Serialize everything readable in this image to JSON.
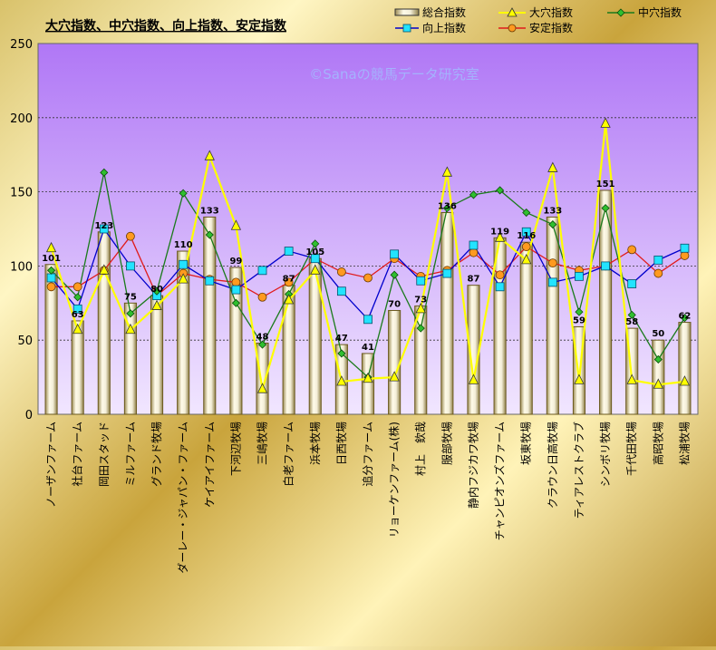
{
  "chart_data": {
    "type": "bar",
    "title": "大穴指数、中穴指数、向上指数、安定指数",
    "watermark": "©Sanaの競馬データ研究室",
    "ylim": [
      0,
      250
    ],
    "yticks": [
      0,
      50,
      100,
      150,
      200,
      250
    ],
    "grid": true,
    "legend_position": "top-right",
    "colors": {
      "plot_top": "#b077f6",
      "plot_bottom": "#f1e6ff",
      "bar_fill": "#f3eed8",
      "bar_edge": "#6b5a1f",
      "series_ooana": "#ffff00",
      "series_nakaana": "#1a7a1a",
      "series_koujou": "#0000cc",
      "series_antei": "#e01b1b"
    },
    "categories": [
      "ノーザンファーム",
      "社台ファーム",
      "岡田スタッド",
      "ミルファーム",
      "グランド牧場",
      "ダーレー・ジャパン・ファーム",
      "ケイアイファーム",
      "下河辺牧場",
      "三嶋牧場",
      "白老ファーム",
      "浜本牧場",
      "日西牧場",
      "追分ファーム",
      "リョーケンファーム(株)",
      "村上　欽哉",
      "服部牧場",
      "静内フジカワ牧場",
      "チャンピオンズファーム",
      "坂東牧場",
      "クラウン日高牧場",
      "ティアレストクラブ",
      "シンボリ牧場",
      "千代田牧場",
      "高昭牧場",
      "松浦牧場"
    ],
    "legend": {
      "total": "総合指数",
      "ooana": "大穴指数",
      "nakaana": "中穴指数",
      "koujou": "向上指数",
      "antei": "安定指数"
    },
    "series": [
      {
        "key": "total",
        "name": "総合指数",
        "values": [
          101,
          63,
          123,
          75,
          80,
          110,
          133,
          99,
          48,
          87,
          105,
          47,
          41,
          70,
          73,
          136,
          87,
          119,
          116,
          133,
          59,
          151,
          58,
          50,
          62
        ]
      },
      {
        "key": "ooana",
        "name": "大穴指数",
        "values": [
          112,
          57,
          97,
          57,
          73,
          91,
          174,
          127,
          17,
          77,
          97,
          22,
          24,
          25,
          71,
          163,
          23,
          119,
          104,
          166,
          23,
          196,
          23,
          20,
          22
        ]
      },
      {
        "key": "nakaana",
        "name": "中穴指数",
        "values": [
          97,
          79,
          163,
          68,
          83,
          149,
          121,
          75,
          47,
          81,
          115,
          41,
          25,
          94,
          58,
          139,
          148,
          151,
          136,
          128,
          69,
          139,
          67,
          37,
          65
        ]
      },
      {
        "key": "koujou",
        "name": "向上指数",
        "values": [
          92,
          71,
          125,
          100,
          80,
          101,
          90,
          84,
          97,
          110,
          105,
          83,
          64,
          108,
          90,
          95,
          114,
          86,
          123,
          89,
          93,
          100,
          88,
          104,
          112
        ]
      },
      {
        "key": "antei",
        "name": "安定指数",
        "values": [
          86,
          86,
          97,
          120,
          80,
          95,
          91,
          89,
          79,
          89,
          105,
          96,
          92,
          105,
          93,
          97,
          109,
          94,
          113,
          102,
          97,
          100,
          111,
          95,
          107
        ]
      }
    ]
  }
}
